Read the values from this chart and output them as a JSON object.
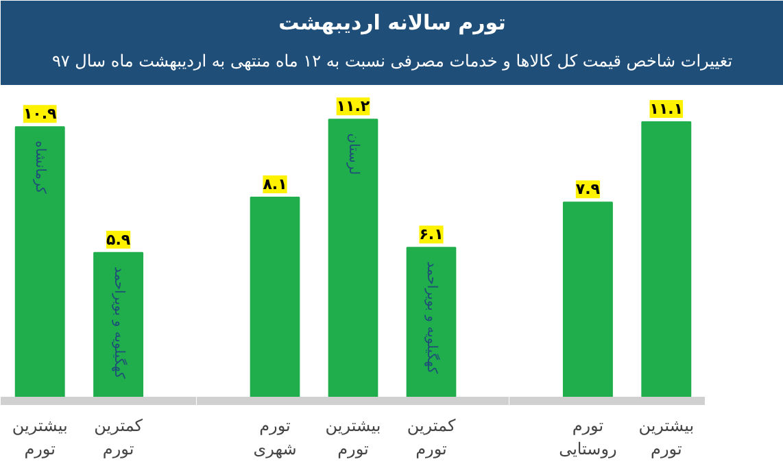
{
  "chart_data": [
    {
      "type": "other",
      "title": "تورم سالانه اردیبهشت",
      "subtitle": "تغییرات شاخص قیمت کل کالاها و خدمات مصرفی نسبت به ۱۲ ماه منتهی به اردیبهشت ماه سال ۹۷"
    },
    {
      "type": "bar",
      "categories": [
        "بیشترین تورم",
        "کمترین تورم"
      ],
      "values": [
        10.9,
        5.9
      ],
      "value_labels": [
        "۱۰.۹",
        "۵.۹"
      ],
      "color": "#1fae4b",
      "annotations": [
        {
          "text": "کرمانشاه",
          "x": "بیشترین تورم",
          "y": 10.9
        },
        {
          "text": "کهگیلویه و بویراحمد",
          "x": "کمترین تورم",
          "y": 5.9
        }
      ]
    },
    {
      "type": "bar",
      "categories": [
        "تورم شهری",
        "بیشترین تورم",
        "کمترین تورم"
      ],
      "values": [
        8.1,
        11.2,
        6.1
      ],
      "value_labels": [
        "۸.۱",
        "۱۱.۲",
        "۶.۱"
      ],
      "color": "#1fae4b",
      "annotations": [
        {
          "text": "لرستان",
          "x": "بیشترین تورم",
          "y": 11.2
        },
        {
          "text": "کهگیلویه و بویراحمد",
          "x": "کمترین تورم",
          "y": 6.1
        }
      ]
    },
    {
      "type": "bar",
      "categories": [
        "تورم روستایی",
        "بیشترین تورم"
      ],
      "values": [
        7.9,
        11.1
      ],
      "value_labels": [
        "۷.۹",
        "۱۱.۱"
      ],
      "color": "#1fae4b"
    }
  ]
}
